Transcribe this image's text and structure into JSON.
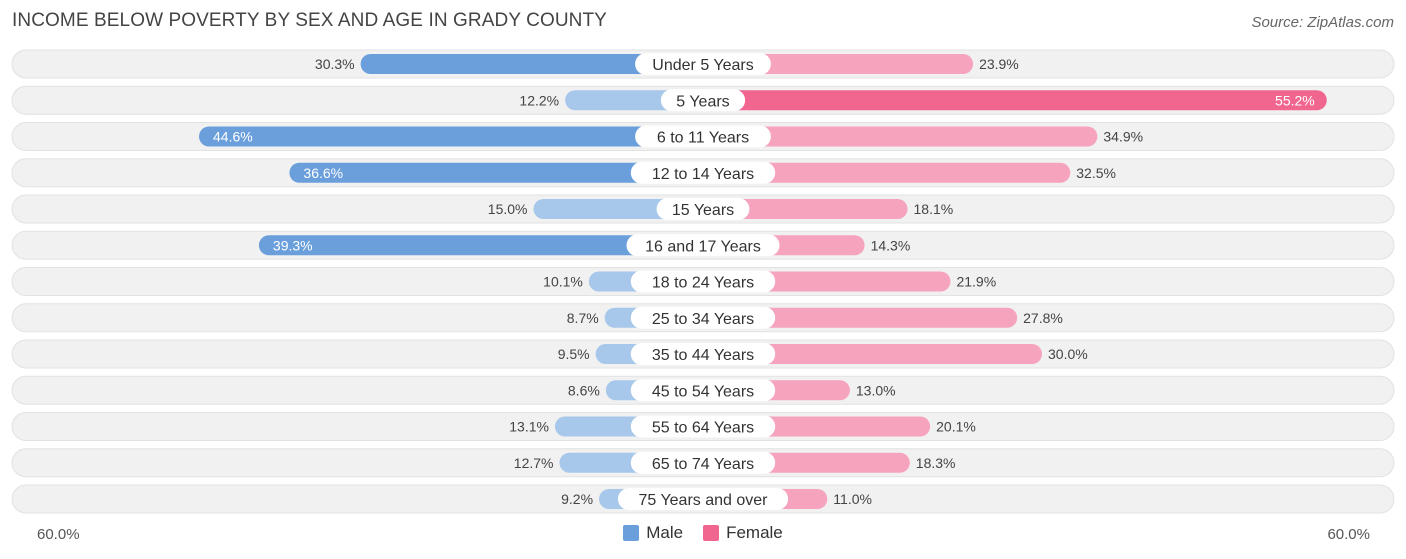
{
  "title": "INCOME BELOW POVERTY BY SEX AND AGE IN GRADY COUNTY",
  "source": "Source: ZipAtlas.com",
  "colors": {
    "male": "#6a9fdb",
    "male_light": "#a7c8eb",
    "female": "#f0668f",
    "female_light": "#f6a3bd",
    "row_bg": "#f1f1f1",
    "row_border": "#e2e2e2"
  },
  "chart_data": {
    "type": "bar",
    "orientation": "horizontal-diverging",
    "title": "INCOME BELOW POVERTY BY SEX AND AGE IN GRADY COUNTY",
    "categories": [
      "Under 5 Years",
      "5 Years",
      "6 to 11 Years",
      "12 to 14 Years",
      "15 Years",
      "16 and 17 Years",
      "18 to 24 Years",
      "25 to 34 Years",
      "35 to 44 Years",
      "45 to 54 Years",
      "55 to 64 Years",
      "65 to 74 Years",
      "75 Years and over"
    ],
    "series": [
      {
        "name": "Male",
        "values": [
          30.3,
          12.2,
          44.6,
          36.6,
          15.0,
          39.3,
          10.1,
          8.7,
          9.5,
          8.6,
          13.1,
          12.7,
          9.2
        ],
        "labels": [
          "30.3%",
          "12.2%",
          "44.6%",
          "36.6%",
          "15.0%",
          "39.3%",
          "10.1%",
          "8.7%",
          "9.5%",
          "8.6%",
          "13.1%",
          "12.7%",
          "9.2%"
        ]
      },
      {
        "name": "Female",
        "values": [
          23.9,
          55.2,
          34.9,
          32.5,
          18.1,
          14.3,
          21.9,
          27.8,
          30.0,
          13.0,
          20.1,
          18.3,
          11.0
        ],
        "labels": [
          "23.9%",
          "55.2%",
          "34.9%",
          "32.5%",
          "18.1%",
          "14.3%",
          "21.9%",
          "27.8%",
          "30.0%",
          "13.0%",
          "20.1%",
          "18.3%",
          "11.0%"
        ]
      }
    ],
    "xlim": [
      -60,
      60
    ],
    "axis_min_label": "60.0%",
    "axis_max_label": "60.0%",
    "legend": [
      "Male",
      "Female"
    ],
    "legend_position": "bottom-center"
  }
}
